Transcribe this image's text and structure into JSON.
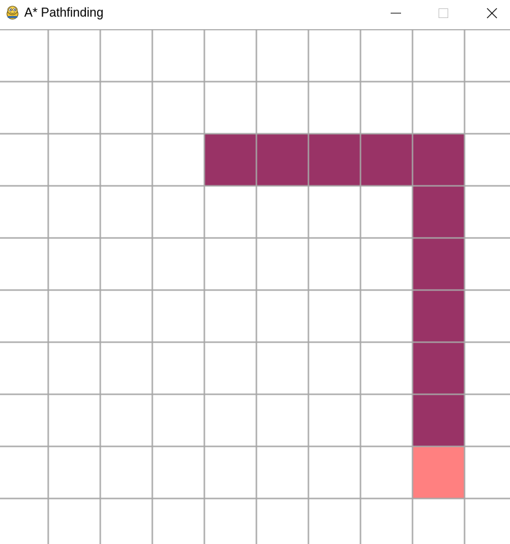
{
  "window": {
    "title": "A* Pathfinding",
    "app_icon": "python-snake-icon",
    "controls": [
      "minimize",
      "maximize",
      "close"
    ]
  },
  "grid": {
    "cols": 10,
    "rows": 10,
    "colors": {
      "background": "#ffffff",
      "grid_line": "#a6a6a6",
      "path": "#993366",
      "end": "#ff8080"
    },
    "cells": [
      {
        "row": 2,
        "col": 4,
        "state": "path"
      },
      {
        "row": 2,
        "col": 5,
        "state": "path"
      },
      {
        "row": 2,
        "col": 6,
        "state": "path"
      },
      {
        "row": 2,
        "col": 7,
        "state": "path"
      },
      {
        "row": 2,
        "col": 8,
        "state": "path"
      },
      {
        "row": 3,
        "col": 8,
        "state": "path"
      },
      {
        "row": 4,
        "col": 8,
        "state": "path"
      },
      {
        "row": 5,
        "col": 8,
        "state": "path"
      },
      {
        "row": 6,
        "col": 8,
        "state": "path"
      },
      {
        "row": 7,
        "col": 8,
        "state": "path"
      },
      {
        "row": 8,
        "col": 8,
        "state": "end"
      }
    ]
  }
}
